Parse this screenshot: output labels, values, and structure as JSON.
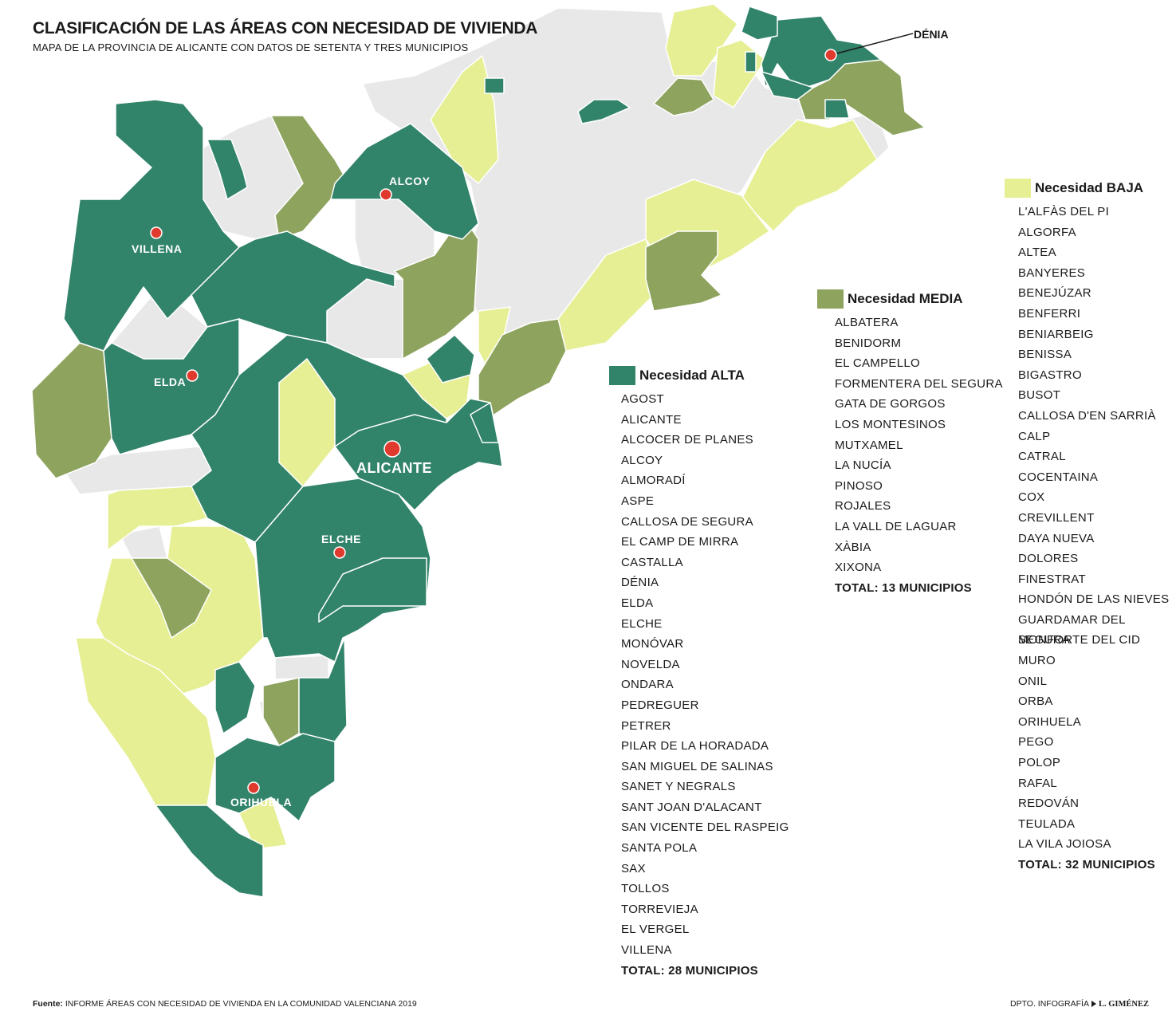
{
  "title": "CLASIFICACIÓN DE LAS ÁREAS CON NECESIDAD DE VIVIENDA",
  "subtitle": "MAPA DE LA PROVINCIA DE ALICANTE CON DATOS DE SETENTA Y TRES MUNICIPIOS",
  "colors": {
    "alta": "#31836a",
    "media": "#8ea35e",
    "baja": "#e6ef94",
    "sin_datos": "#e8e8e8",
    "city_marker": "#e03a2e"
  },
  "cities": [
    {
      "name": "DÉNIA"
    },
    {
      "name": "ALCOY"
    },
    {
      "name": "VILLENA"
    },
    {
      "name": "ELDA"
    },
    {
      "name": "ALICANTE"
    },
    {
      "name": "ELCHE"
    },
    {
      "name": "ORIHUELA"
    }
  ],
  "legend": {
    "alta": {
      "title": "Necesidad ALTA",
      "items": [
        "AGOST",
        "ALICANTE",
        "ALCOCER DE PLANES",
        "ALCOY",
        "ALMORADÍ",
        "ASPE",
        "CALLOSA DE SEGURA",
        "EL CAMP DE MIRRA",
        "CASTALLA",
        "DÉNIA",
        "ELDA",
        "ELCHE",
        "MONÓVAR",
        "NOVELDA",
        "ONDARA",
        "PEDREGUER",
        "PETRER",
        "PILAR DE LA HORADADA",
        "SAN MIGUEL DE SALINAS",
        "SANET Y NEGRALS",
        "SANT JOAN D'ALACANT",
        "SAN VICENTE DEL RASPEIG",
        "SANTA POLA",
        "SAX",
        "TOLLOS",
        "TORREVIEJA",
        "EL VERGEL",
        "VILLENA"
      ],
      "total": "TOTAL: 28 MUNICIPIOS"
    },
    "media": {
      "title": "Necesidad MEDIA",
      "items": [
        "ALBATERA",
        "BENIDORM",
        "EL CAMPELLO",
        "FORMENTERA DEL SEGURA",
        "GATA DE GORGOS",
        "LOS MONTESINOS",
        "MUTXAMEL",
        "LA NUCÍA",
        "PINOSO",
        "ROJALES",
        "LA VALL DE LAGUAR",
        "XÀBIA",
        "XIXONA"
      ],
      "total": "TOTAL: 13 MUNICIPIOS"
    },
    "baja": {
      "title": "Necesidad BAJA",
      "items": [
        "L'ALFÀS DEL PI",
        "ALGORFA",
        "ALTEA",
        "BANYERES",
        "BENEJÚZAR",
        "BENFERRI",
        "BENIARBEIG",
        "BENISSA",
        "BIGASTRO",
        "BUSOT",
        "CALLOSA D'EN SARRIÀ",
        "CALP",
        "CATRAL",
        "COCENTAINA",
        "COX",
        "CREVILLENT",
        "DAYA NUEVA",
        "DOLORES",
        "FINESTRAT",
        "HONDÓN DE LAS NIEVES",
        "GUARDAMAR DEL SEGURA",
        "MONFORTE DEL CID",
        "MURO",
        "ONIL",
        "ORBA",
        "ORIHUELA",
        "PEGO",
        "POLOP",
        "RAFAL",
        "REDOVÁN",
        "TEULADA",
        "LA VILA JOIOSA"
      ],
      "total": "TOTAL: 32 MUNICIPIOS"
    }
  },
  "footer": {
    "source_label": "Fuente:",
    "source_text": "INFORME ÁREAS CON NECESIDAD DE VIVIENDA EN LA COMUNIDAD VALENCIANA 2019",
    "credit_dept": "DPTO. INFOGRAFÍA",
    "credit_name": "L. GIMÉNEZ"
  }
}
